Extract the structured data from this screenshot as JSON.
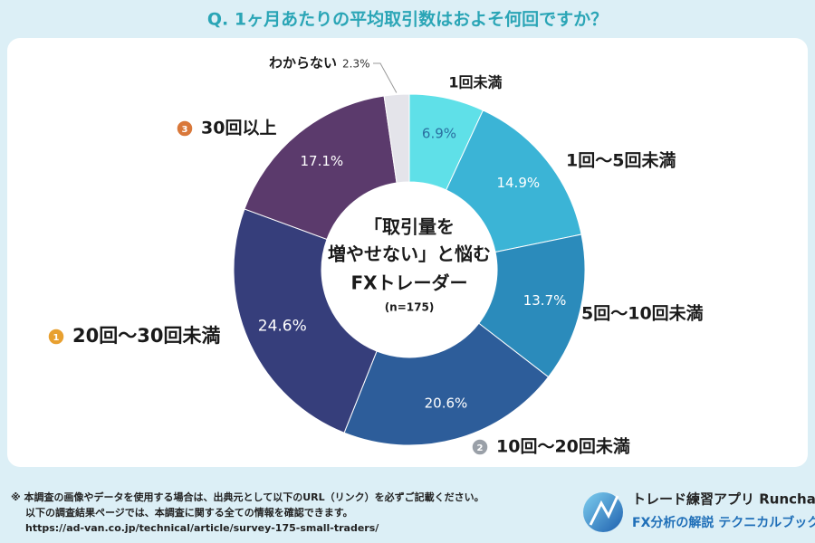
{
  "chart_data": {
    "type": "donut",
    "title": "Q. 1ヶ月あたりの平均取引数はおよそ何回ですか？",
    "categories": [
      "1回未満",
      "1回～5回未満",
      "5回～10回未満",
      "10回～20回未満",
      "20回～30回未満",
      "30回以上",
      "わからない"
    ],
    "values": [
      6.9,
      14.9,
      13.7,
      20.6,
      24.6,
      17.1,
      2.3
    ],
    "value_labels": [
      "6.9%",
      "14.9%",
      "13.7%",
      "20.6%",
      "24.6%",
      "17.1%",
      "2.3%"
    ],
    "colors": [
      "#5fe0e8",
      "#3bb4d6",
      "#2b8bbb",
      "#2d5d9a",
      "#363e7b",
      "#5b3a6c",
      "#e4e4ea"
    ],
    "ranks": [
      null,
      null,
      null,
      2,
      1,
      3,
      null
    ],
    "center_text": [
      "「取引量を",
      "増やせない」と悩む",
      "FXトレーダー",
      "(n=175)"
    ]
  },
  "footer": {
    "notes": [
      "※ 本調査の画像やデータを使用する場合は、出典元として以下のURL（リンク）を必ずご記載ください。",
      "以下の調査結果ページでは、本調査に関する全ての情報を確認できます。"
    ],
    "url": "https://ad-van.co.jp/technical/article/survey-175-small-traders/"
  },
  "logo": {
    "title": "トレード練習アプリ Runcha",
    "subtitle": "FX分析の解説 テクニカルブック"
  }
}
